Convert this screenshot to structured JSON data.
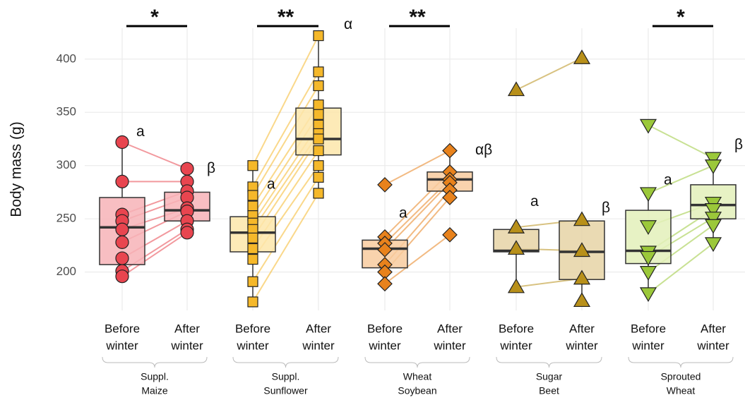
{
  "chart_data": {
    "type": "box",
    "ylabel": "Body mass (g)",
    "ylim": [
      164,
      429
    ],
    "yticks": [
      200,
      250,
      300,
      350,
      400
    ],
    "grid": true,
    "x_labels": [
      [
        "Before",
        "winter"
      ],
      [
        "After",
        "winter"
      ]
    ],
    "groups": [
      {
        "name": [
          "Suppl.",
          "Maize"
        ],
        "box_color": "#f7b3b7",
        "color": "#e8454f",
        "marker": "circle",
        "significance": "*",
        "before": {
          "letter": "a",
          "whislo": 195,
          "q1": 207,
          "median": 242,
          "q3": 270,
          "whishi": 322,
          "points": [
            322,
            285,
            254,
            248,
            240,
            228,
            213,
            201,
            196
          ]
        },
        "after": {
          "letter": "β",
          "whislo": 237,
          "q1": 248,
          "median": 258,
          "q3": 275,
          "whishi": 297,
          "points": [
            297,
            285,
            276,
            270,
            260,
            257,
            248,
            240,
            237
          ]
        }
      },
      {
        "name": [
          "Suppl.",
          "Sunflower"
        ],
        "box_color": "#fde6aa",
        "color": "#f5b82a",
        "marker": "square",
        "significance": "**",
        "before": {
          "letter": "a",
          "whislo": 172,
          "q1": 219,
          "median": 237,
          "q3": 252,
          "whishi": 300,
          "points": [
            300,
            280,
            272,
            262,
            253,
            246,
            240,
            232,
            222,
            212,
            191,
            172
          ]
        },
        "after": {
          "letter": "α",
          "whislo": 274,
          "q1": 310,
          "median": 325,
          "q3": 354,
          "whishi": 422,
          "points": [
            422,
            388,
            375,
            357,
            348,
            338,
            330,
            325,
            314,
            300,
            289,
            274
          ]
        }
      },
      {
        "name": [
          "Wheat",
          "Soybean"
        ],
        "box_color": "#f8cb9f",
        "color": "#e8821c",
        "marker": "diamond",
        "significance": "**",
        "before": {
          "letter": "a",
          "whislo": 189,
          "q1": 204,
          "median": 222,
          "q3": 230,
          "whishi": 233,
          "points": [
            282,
            233,
            227,
            221,
            207,
            200,
            189
          ]
        },
        "after": {
          "letter": "αβ",
          "whislo": 276,
          "q1": 276,
          "median": 287,
          "q3": 294,
          "whishi": 314,
          "points": [
            314,
            294,
            287,
            284,
            277,
            270,
            235
          ]
        }
      },
      {
        "name": [
          "Sugar",
          "Beet"
        ],
        "box_color": "#e6d4a6",
        "color": "#b8901a",
        "marker": "triangle",
        "before": {
          "letter": "a",
          "whislo": 186,
          "q1": 219,
          "median": 220,
          "q3": 240,
          "whishi": 242,
          "points": [
            371,
            242,
            222,
            186
          ]
        },
        "after": {
          "letter": "β",
          "whislo": 173,
          "q1": 193,
          "median": 219,
          "q3": 248,
          "whishi": 249,
          "points": [
            401,
            249,
            220,
            194,
            173
          ]
        }
      },
      {
        "name": [
          "Sprouted",
          "Wheat"
        ],
        "box_color": "#e3f0ba",
        "color": "#9bc83a",
        "marker": "triangle-down",
        "significance": "*",
        "before": {
          "letter": "a",
          "whislo": 180,
          "q1": 208,
          "median": 220,
          "q3": 258,
          "whishi": 274,
          "points": [
            338,
            274,
            243,
            219,
            214,
            200,
            180
          ]
        },
        "after": {
          "letter": "β",
          "whislo": 227,
          "q1": 250,
          "median": 263,
          "q3": 282,
          "whishi": 307,
          "points": [
            307,
            300,
            265,
            259,
            251,
            244,
            227
          ]
        }
      }
    ]
  }
}
